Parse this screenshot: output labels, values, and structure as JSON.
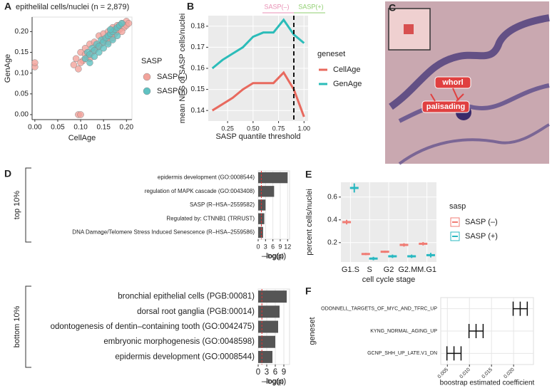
{
  "chart_data": [
    {
      "type": "scatter",
      "panel": "A",
      "title": "epithelilal cells/nuclei (n = 2,879)",
      "x_label": "CellAge",
      "y_label": "GenAge",
      "legend_title": "SASP",
      "xlim": [
        -0.006,
        0.212
      ],
      "ylim": [
        -0.012,
        0.235
      ],
      "xticks": [
        {
          "value": 0,
          "label": "0.00"
        },
        {
          "value": 0.05,
          "label": "0.05"
        },
        {
          "value": 0.1,
          "label": "0.10"
        },
        {
          "value": 0.15,
          "label": "0.15"
        },
        {
          "value": 0.2,
          "label": "0.20"
        }
      ],
      "yticks": [
        {
          "value": 0,
          "label": "0.00"
        },
        {
          "value": 0.05,
          "label": "0.05"
        },
        {
          "value": 0.1,
          "label": "0.10"
        },
        {
          "value": 0.15,
          "label": "0.15"
        },
        {
          "value": 0.2,
          "label": "0.20"
        }
      ],
      "series": [
        {
          "name": "SASP(–)",
          "color": "#f2a39b",
          "x": [
            0.0,
            0.0,
            0.095,
            0.1,
            0.085,
            0.09,
            0.095,
            0.1,
            0.105,
            0.11,
            0.115,
            0.12,
            0.125,
            0.13,
            0.135,
            0.14,
            0.145,
            0.15,
            0.155,
            0.16,
            0.165,
            0.17,
            0.175,
            0.18,
            0.185,
            0.19,
            0.195,
            0.2,
            0.1,
            0.11,
            0.12,
            0.13,
            0.14,
            0.15,
            0.16,
            0.17,
            0.18,
            0.19,
            0.2,
            0.205
          ],
          "y": [
            0.115,
            0.125,
            0.0,
            0.0,
            0.12,
            0.135,
            0.11,
            0.15,
            0.13,
            0.16,
            0.14,
            0.17,
            0.15,
            0.175,
            0.16,
            0.19,
            0.17,
            0.195,
            0.18,
            0.2,
            0.19,
            0.21,
            0.195,
            0.215,
            0.205,
            0.22,
            0.21,
            0.225,
            0.125,
            0.145,
            0.135,
            0.155,
            0.165,
            0.18,
            0.175,
            0.185,
            0.2,
            0.2,
            0.215,
            0.22
          ]
        },
        {
          "name": "SASP(+)",
          "color": "#5fc2c2",
          "x": [
            0.11,
            0.115,
            0.12,
            0.125,
            0.13,
            0.135,
            0.14,
            0.145,
            0.15,
            0.155,
            0.16,
            0.165,
            0.17,
            0.175,
            0.18,
            0.185,
            0.19,
            0.13,
            0.14,
            0.15,
            0.16,
            0.17,
            0.18,
            0.12,
            0.165
          ],
          "y": [
            0.135,
            0.15,
            0.145,
            0.16,
            0.155,
            0.17,
            0.165,
            0.18,
            0.175,
            0.185,
            0.19,
            0.195,
            0.2,
            0.205,
            0.21,
            0.215,
            0.22,
            0.14,
            0.15,
            0.16,
            0.17,
            0.18,
            0.19,
            0.125,
            0.205
          ]
        }
      ]
    },
    {
      "type": "line",
      "panel": "B",
      "x_label": "SASP quantile threshold",
      "y_label": "mean NES of SASP cells/nuclei",
      "legend_title": "geneset",
      "background": "#ebebeb",
      "grid": true,
      "x": [
        0.1,
        0.2,
        0.3,
        0.4,
        0.5,
        0.6,
        0.7,
        0.8,
        0.9,
        1.0
      ],
      "xlim": [
        0.06,
        1.04
      ],
      "ylim": [
        0.135,
        0.185
      ],
      "xticks": [
        {
          "value": 0.25,
          "label": "0.25"
        },
        {
          "value": 0.5,
          "label": "0.50"
        },
        {
          "value": 0.75,
          "label": "0.75"
        },
        {
          "value": 1,
          "label": "1.00"
        }
      ],
      "yticks": [
        0.14,
        0.15,
        0.16,
        0.17,
        0.18
      ],
      "vline": 0.9,
      "annotations": [
        {
          "text": "SASP(–)",
          "color": "#e88fb4"
        },
        {
          "text": "SASP(+)",
          "color": "#8fcf6f"
        }
      ],
      "series": [
        {
          "name": "CellAge",
          "color": "#e8695e",
          "values": [
            0.14,
            0.143,
            0.146,
            0.15,
            0.153,
            0.153,
            0.153,
            0.158,
            0.15,
            0.137
          ]
        },
        {
          "name": "GenAge",
          "color": "#2bbcb9",
          "values": [
            0.16,
            0.164,
            0.167,
            0.17,
            0.175,
            0.177,
            0.177,
            0.183,
            0.176,
            0.172
          ]
        }
      ]
    },
    {
      "type": "hbar",
      "panel": "D",
      "group_label": "top 10%",
      "x_label": "–log(p)",
      "color": "#555555",
      "threshold": 1.3,
      "grid": true,
      "categories": [
        "epidermis development (GO:0008544)",
        "regulation of MAPK cascade (GO:0043408)",
        "SASP (R–HSA–2559582)",
        "Regulated by: CTNNB1 (TRRUST)",
        "DNA Damage/Telomere Stress Induced Senescence (R–HSA–2559586)"
      ],
      "values": [
        12,
        6.5,
        3,
        2.5,
        2
      ],
      "xlim": [
        0,
        12.8
      ],
      "xticks": [
        0,
        3,
        6,
        9,
        12
      ]
    },
    {
      "type": "hbar",
      "group_label": "bottom 10%",
      "x_label": "–log(p)",
      "color": "#555555",
      "threshold": 1.3,
      "grid": true,
      "categories": [
        "bronchial epithelial cells (PGB:00081)",
        "dorsal root ganglia (PGB:00014)",
        "odontogenesis of dentin–containing tooth (GO:0042475)",
        "embryonic morphogenesis (GO:0048598)",
        "epidermis development (GO:0008544)"
      ],
      "values": [
        10,
        7.5,
        7,
        6,
        5
      ],
      "xlim": [
        0,
        11
      ],
      "xticks": [
        0,
        3,
        6,
        9
      ]
    },
    {
      "type": "dot",
      "panel": "E",
      "x_label": "cell cycle stage",
      "y_label": "percent cells/nuclei",
      "legend_title": "sasp",
      "background": "#ebebeb",
      "grid": true,
      "categories": [
        "G1.S",
        "S",
        "G2",
        "G2.M",
        "M.G1"
      ],
      "ylim": [
        0.03,
        0.73
      ],
      "yticks": [
        0.2,
        0.4,
        0.6
      ],
      "series": [
        {
          "name": "SASP (–)",
          "color": "#f07c74",
          "values": [
            0.38,
            0.1,
            0.12,
            0.18,
            0.19
          ],
          "errors": [
            0.02,
            0.01,
            0.01,
            0.015,
            0.015
          ]
        },
        {
          "name": "SASP (+)",
          "color": "#29b8c1",
          "values": [
            0.68,
            0.06,
            0.08,
            0.08,
            0.09
          ],
          "errors": [
            0.04,
            0.015,
            0.015,
            0.015,
            0.02
          ]
        }
      ]
    },
    {
      "type": "errorbar",
      "panel": "F",
      "x_label": "boostrap estimated coefficient",
      "y_label": "geneset",
      "grid": true,
      "xtick_rotation": 45,
      "color": "#111111",
      "categories": [
        "GCNP_SHH_UP_LATE.V1_DN",
        "KYNG_NORMAL_AGING_UP",
        "ODONNELL_TARGETS_OF_MYC_AND_TFRC_UP"
      ],
      "values": [
        0.0065,
        0.0115,
        0.0215
      ],
      "errors": [
        0.0016,
        0.0016,
        0.0016
      ],
      "xlim": [
        0.0035,
        0.0245
      ],
      "xticks": [
        0.005,
        {
          "value": 0.01,
          "label": "0.010"
        },
        0.015,
        {
          "value": 0.02,
          "label": "0.020"
        }
      ]
    }
  ],
  "image_panel": {
    "panel": "C",
    "labels": [
      "whorl",
      "palisading"
    ]
  }
}
